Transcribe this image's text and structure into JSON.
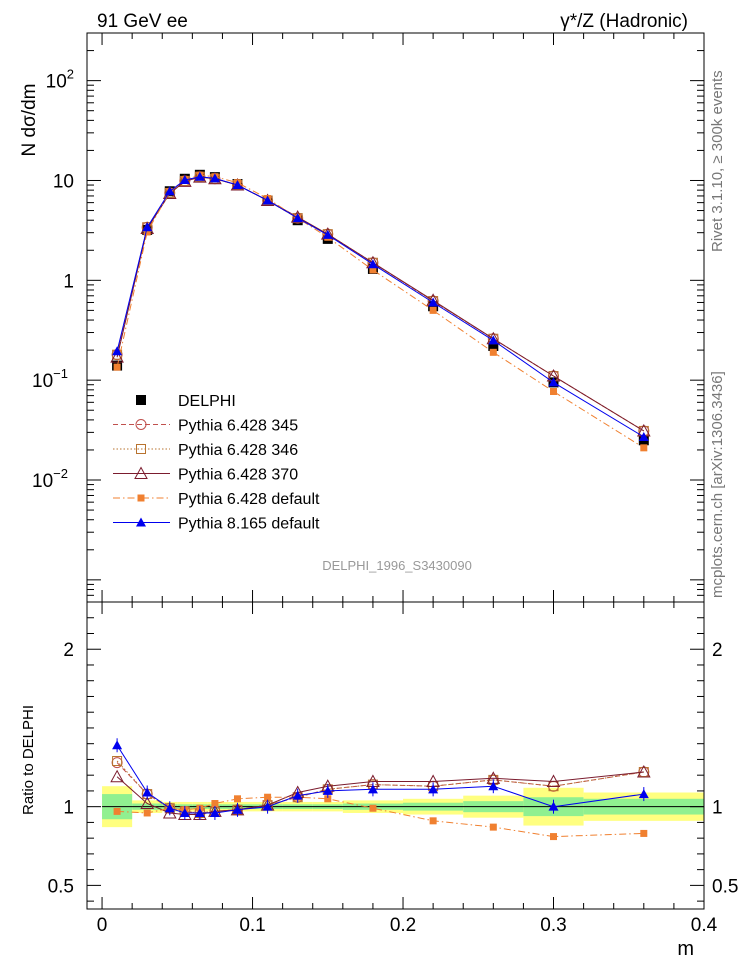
{
  "header": {
    "left": "91 GeV ee",
    "right": "γ*/Z (Hadronic)",
    "side_top": "Rivet 3.1.10, ≥ 300k events",
    "side_bottom": "mcplots.cern.ch [arXiv:1306.3436]",
    "watermark": "DELPHI_1996_S3430090"
  },
  "colors": {
    "delphi": "#000000",
    "p345": "#c0504d",
    "p346": "#b8732f",
    "p370": "#7b1c2e",
    "pdef": "#f08030",
    "p8": "#0000ee",
    "band_green": "#90f090",
    "band_yellow": "#ffff80"
  },
  "chart_data": [
    {
      "type": "line",
      "panel": "main",
      "xlabel": "m",
      "ylabel": "N dσ/dm",
      "yscale": "log",
      "xlim": [
        -0.01,
        0.4
      ],
      "ylim": [
        0.0006,
        300
      ],
      "yticks": [
        {
          "v": 100,
          "base": "10",
          "exp": "2"
        },
        {
          "v": 10,
          "base": "10",
          "exp": ""
        },
        {
          "v": 1,
          "base": "1",
          "exp": ""
        },
        {
          "v": 0.1,
          "base": "10",
          "exp": "−1"
        },
        {
          "v": 0.01,
          "base": "10",
          "exp": "−2"
        }
      ],
      "x": [
        0.01,
        0.03,
        0.045,
        0.055,
        0.065,
        0.075,
        0.09,
        0.11,
        0.13,
        0.15,
        0.18,
        0.22,
        0.26,
        0.3,
        0.36
      ],
      "series": [
        {
          "name": "DELPHI",
          "key": "delphi",
          "marker": "square-filled",
          "line": "none",
          "values": [
            0.14,
            3.2,
            7.8,
            10.4,
            11.4,
            10.8,
            9.2,
            6.3,
            4.0,
            2.6,
            1.3,
            0.55,
            0.22,
            0.095,
            0.025
          ]
        },
        {
          "name": "Pythia 6.428 345",
          "key": "p345",
          "marker": "circle-open",
          "line": "dashed",
          "values": [
            0.18,
            3.4,
            7.5,
            9.9,
            10.9,
            10.4,
            9.0,
            6.3,
            4.2,
            2.9,
            1.5,
            0.62,
            0.26,
            0.11,
            0.031
          ]
        },
        {
          "name": "Pythia 6.428 346",
          "key": "p346",
          "marker": "square-open",
          "line": "dotted",
          "values": [
            0.18,
            3.4,
            7.5,
            9.9,
            10.9,
            10.4,
            9.0,
            6.3,
            4.2,
            2.9,
            1.5,
            0.62,
            0.26,
            0.11,
            0.031
          ]
        },
        {
          "name": "Pythia 6.428 370",
          "key": "p370",
          "marker": "triangle-open",
          "line": "solid",
          "values": [
            0.17,
            3.3,
            7.4,
            9.8,
            10.8,
            10.4,
            9.0,
            6.3,
            4.3,
            2.9,
            1.5,
            0.63,
            0.26,
            0.11,
            0.031
          ]
        },
        {
          "name": "Pythia 6.428 default",
          "key": "pdef",
          "marker": "square-small",
          "line": "dashdot",
          "values": [
            0.135,
            3.05,
            7.7,
            10.2,
            11.3,
            10.9,
            9.5,
            6.6,
            4.2,
            2.7,
            1.27,
            0.5,
            0.19,
            0.077,
            0.021
          ]
        },
        {
          "name": "Pythia 8.165 default",
          "key": "p8",
          "marker": "triangle-filled",
          "line": "solid",
          "values": [
            0.195,
            3.4,
            7.8,
            10.1,
            10.9,
            10.5,
            9.0,
            6.3,
            4.2,
            2.85,
            1.45,
            0.6,
            0.25,
            0.095,
            0.027
          ]
        }
      ]
    },
    {
      "type": "line",
      "panel": "ratio",
      "xlabel": "m",
      "ylabel": "Ratio to DELPHI",
      "xlim": [
        -0.01,
        0.4
      ],
      "ylim": [
        0.35,
        2.3
      ],
      "yticks": [
        0.5,
        1,
        2
      ],
      "ytick_labels": [
        "0.5",
        "1",
        "2"
      ],
      "xticks": [
        0,
        0.1,
        0.2,
        0.3,
        0.4
      ],
      "xtick_labels": [
        "0",
        "0.1",
        "0.2",
        "0.3",
        "0.4"
      ],
      "x": [
        0.01,
        0.03,
        0.045,
        0.055,
        0.065,
        0.075,
        0.09,
        0.11,
        0.13,
        0.15,
        0.18,
        0.22,
        0.26,
        0.3,
        0.36
      ],
      "bands": {
        "edges": [
          0,
          0.02,
          0.04,
          0.05,
          0.06,
          0.07,
          0.08,
          0.1,
          0.12,
          0.14,
          0.16,
          0.2,
          0.24,
          0.28,
          0.32,
          0.4
        ],
        "yellow_half": [
          0.13,
          0.04,
          0.03,
          0.03,
          0.03,
          0.03,
          0.03,
          0.03,
          0.03,
          0.03,
          0.04,
          0.05,
          0.07,
          0.12,
          0.09
        ],
        "green_half": [
          0.08,
          0.02,
          0.015,
          0.015,
          0.015,
          0.015,
          0.015,
          0.015,
          0.015,
          0.015,
          0.02,
          0.025,
          0.035,
          0.06,
          0.05
        ]
      },
      "series": [
        {
          "name": "Pythia 6.428 345",
          "key": "p345",
          "marker": "circle-open",
          "line": "dashed",
          "values": [
            1.28,
            1.08,
            0.99,
            0.97,
            0.96,
            0.97,
            0.98,
            1.01,
            1.06,
            1.11,
            1.14,
            1.13,
            1.17,
            1.13,
            1.22
          ]
        },
        {
          "name": "Pythia 6.428 346",
          "key": "p346",
          "marker": "square-open",
          "line": "dotted",
          "values": [
            1.29,
            1.08,
            0.99,
            0.97,
            0.96,
            0.97,
            0.98,
            1.01,
            1.06,
            1.11,
            1.14,
            1.13,
            1.17,
            1.13,
            1.22
          ]
        },
        {
          "name": "Pythia 6.428 370",
          "key": "p370",
          "marker": "triangle-open",
          "line": "solid",
          "values": [
            1.19,
            1.02,
            0.96,
            0.95,
            0.95,
            0.97,
            0.98,
            1.01,
            1.09,
            1.13,
            1.16,
            1.16,
            1.18,
            1.16,
            1.22
          ]
        },
        {
          "name": "Pythia 6.428 default",
          "key": "pdef",
          "marker": "square-small",
          "line": "dashdot",
          "values": [
            0.97,
            0.96,
            0.99,
            0.98,
            0.99,
            1.02,
            1.05,
            1.06,
            1.06,
            1.05,
            0.99,
            0.91,
            0.87,
            0.81,
            0.83
          ]
        },
        {
          "name": "Pythia 8.165 default",
          "key": "p8",
          "marker": "triangle-filled",
          "line": "solid",
          "values": [
            1.39,
            1.09,
            0.99,
            0.96,
            0.96,
            0.96,
            0.98,
            1.0,
            1.07,
            1.1,
            1.11,
            1.11,
            1.13,
            1.0,
            1.08
          ]
        }
      ]
    }
  ]
}
